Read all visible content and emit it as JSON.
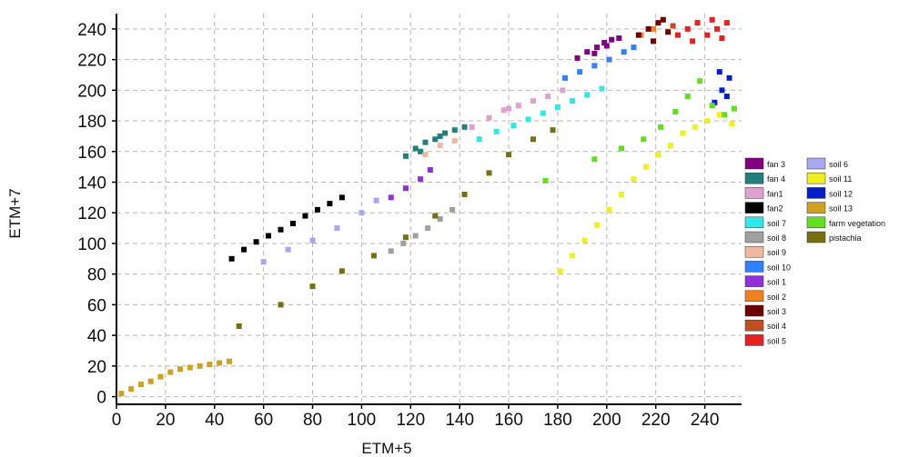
{
  "chart_data": {
    "type": "scatter",
    "title": "",
    "xlabel": "ETM+5",
    "ylabel": "ETM+7",
    "xlim": [
      0,
      255
    ],
    "ylim": [
      -5,
      250
    ],
    "xticks": [
      0,
      20,
      40,
      60,
      80,
      100,
      120,
      140,
      160,
      180,
      200,
      220,
      240
    ],
    "yticks": [
      0,
      20,
      40,
      60,
      80,
      100,
      120,
      140,
      160,
      180,
      200,
      220,
      240
    ],
    "xtick_labels": [
      "0",
      "20",
      "40",
      "60",
      "80",
      "100",
      "120",
      "140",
      "160",
      "180",
      "200",
      "220",
      "240"
    ],
    "ytick_labels": [
      "0",
      "20",
      "40",
      "60",
      "80",
      "100",
      "120",
      "140",
      "160",
      "180",
      "200",
      "220",
      "240"
    ],
    "grid": true,
    "grid_style": "dashed",
    "legend_position": "right",
    "series": [
      {
        "name": "fan 3",
        "color": "#800080",
        "points": [
          [
            188,
            221
          ],
          [
            192,
            225
          ],
          [
            196,
            228
          ],
          [
            199,
            231
          ],
          [
            202,
            233
          ],
          [
            205,
            234
          ],
          [
            195,
            224
          ],
          [
            200,
            229
          ]
        ]
      },
      {
        "name": "fan 4",
        "color": "#208080",
        "points": [
          [
            118,
            157
          ],
          [
            122,
            162
          ],
          [
            126,
            166
          ],
          [
            130,
            168
          ],
          [
            134,
            172
          ],
          [
            138,
            174
          ],
          [
            142,
            176
          ],
          [
            124,
            160
          ],
          [
            132,
            170
          ]
        ]
      },
      {
        "name": "fan1",
        "color": "#e0a0d0",
        "points": [
          [
            145,
            176
          ],
          [
            152,
            182
          ],
          [
            158,
            187
          ],
          [
            164,
            190
          ],
          [
            170,
            193
          ],
          [
            176,
            196
          ],
          [
            182,
            200
          ],
          [
            160,
            188
          ]
        ]
      },
      {
        "name": "fan2",
        "color": "#000000",
        "points": [
          [
            47,
            90
          ],
          [
            52,
            96
          ],
          [
            57,
            101
          ],
          [
            62,
            105
          ],
          [
            67,
            109
          ],
          [
            72,
            113
          ],
          [
            77,
            118
          ],
          [
            82,
            122
          ],
          [
            87,
            126
          ],
          [
            92,
            130
          ]
        ]
      },
      {
        "name": "soil 7",
        "color": "#30e8e8",
        "points": [
          [
            148,
            168
          ],
          [
            155,
            173
          ],
          [
            162,
            177
          ],
          [
            168,
            181
          ],
          [
            174,
            185
          ],
          [
            180,
            189
          ],
          [
            186,
            193
          ],
          [
            192,
            197
          ],
          [
            198,
            201
          ]
        ]
      },
      {
        "name": "soil 8",
        "color": "#a0a0a0",
        "points": [
          [
            112,
            95
          ],
          [
            117,
            100
          ],
          [
            122,
            105
          ],
          [
            127,
            110
          ],
          [
            132,
            116
          ],
          [
            137,
            122
          ]
        ]
      },
      {
        "name": "soil 9",
        "color": "#f0b8a0",
        "points": [
          [
            126,
            158
          ],
          [
            132,
            164
          ],
          [
            138,
            167
          ]
        ]
      },
      {
        "name": "soil 10",
        "color": "#3080ff",
        "points": [
          [
            183,
            208
          ],
          [
            189,
            212
          ],
          [
            195,
            216
          ],
          [
            201,
            220
          ],
          [
            207,
            225
          ],
          [
            211,
            228
          ]
        ]
      },
      {
        "name": "soil 1",
        "color": "#9030d8",
        "points": [
          [
            112,
            130
          ],
          [
            118,
            136
          ],
          [
            124,
            142
          ],
          [
            128,
            148
          ]
        ]
      },
      {
        "name": "soil 2",
        "color": "#f08020",
        "points": [
          [
            214,
            236
          ],
          [
            219,
            240
          ]
        ]
      },
      {
        "name": "soil 3",
        "color": "#700000",
        "points": [
          [
            213,
            236
          ],
          [
            217,
            240
          ],
          [
            221,
            244
          ],
          [
            225,
            238
          ],
          [
            219,
            232
          ],
          [
            223,
            246
          ]
        ]
      },
      {
        "name": "soil 4",
        "color": "#c05020",
        "points": [
          [
            227,
            242
          ]
        ]
      },
      {
        "name": "soil 5",
        "color": "#e82020",
        "points": [
          [
            229,
            236
          ],
          [
            233,
            240
          ],
          [
            237,
            244
          ],
          [
            241,
            236
          ],
          [
            245,
            240
          ],
          [
            249,
            244
          ],
          [
            235,
            232
          ],
          [
            243,
            246
          ],
          [
            247,
            234
          ]
        ]
      },
      {
        "name": "soil 6",
        "color": "#a8a8f0",
        "points": [
          [
            60,
            88
          ],
          [
            70,
            96
          ],
          [
            80,
            102
          ],
          [
            90,
            110
          ],
          [
            100,
            120
          ],
          [
            106,
            128
          ]
        ]
      },
      {
        "name": "soil 11",
        "color": "#f0f020",
        "points": [
          [
            181,
            82
          ],
          [
            186,
            92
          ],
          [
            191,
            102
          ],
          [
            196,
            112
          ],
          [
            201,
            122
          ],
          [
            206,
            132
          ],
          [
            211,
            142
          ],
          [
            216,
            150
          ],
          [
            221,
            158
          ],
          [
            226,
            164
          ],
          [
            231,
            172
          ],
          [
            236,
            176
          ],
          [
            241,
            180
          ],
          [
            246,
            184
          ],
          [
            251,
            178
          ]
        ]
      },
      {
        "name": "soil 12",
        "color": "#0020d0",
        "points": [
          [
            244,
            192
          ],
          [
            247,
            200
          ],
          [
            250,
            208
          ],
          [
            246,
            212
          ],
          [
            249,
            196
          ]
        ]
      },
      {
        "name": "soil 13",
        "color": "#d0a020",
        "points": [
          [
            2,
            2
          ],
          [
            6,
            5
          ],
          [
            10,
            8
          ],
          [
            14,
            10
          ],
          [
            18,
            13
          ],
          [
            22,
            16
          ],
          [
            26,
            18
          ],
          [
            30,
            19
          ],
          [
            34,
            20
          ],
          [
            38,
            21
          ],
          [
            42,
            22
          ],
          [
            46,
            23
          ]
        ]
      },
      {
        "name": "farm vegetation",
        "color": "#60e020",
        "points": [
          [
            175,
            141
          ],
          [
            195,
            155
          ],
          [
            206,
            162
          ],
          [
            215,
            168
          ],
          [
            222,
            176
          ],
          [
            228,
            186
          ],
          [
            233,
            196
          ],
          [
            238,
            206
          ],
          [
            243,
            190
          ],
          [
            248,
            184
          ],
          [
            252,
            188
          ]
        ]
      },
      {
        "name": "pistachia",
        "color": "#787010",
        "points": [
          [
            50,
            46
          ],
          [
            67,
            60
          ],
          [
            80,
            72
          ],
          [
            92,
            82
          ],
          [
            105,
            92
          ],
          [
            118,
            104
          ],
          [
            130,
            118
          ],
          [
            142,
            132
          ],
          [
            152,
            146
          ],
          [
            160,
            158
          ],
          [
            170,
            168
          ],
          [
            178,
            174
          ]
        ]
      }
    ]
  }
}
